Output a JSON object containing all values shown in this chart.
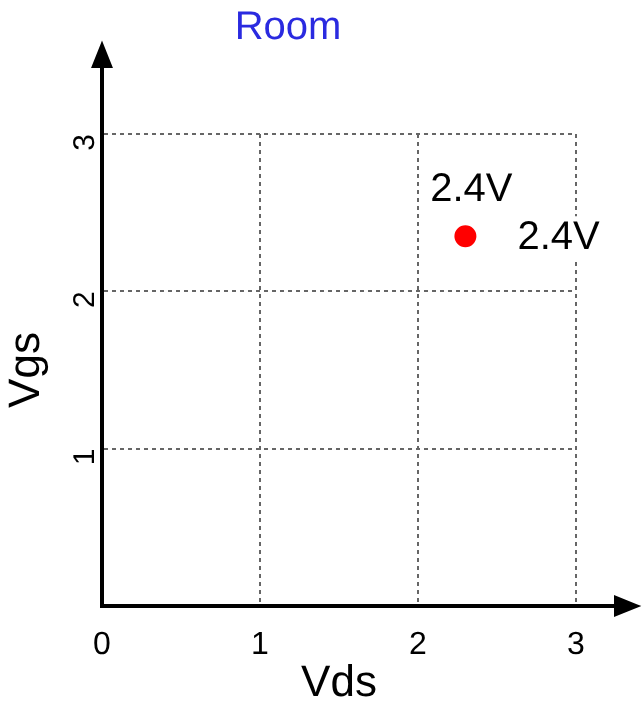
{
  "chart_data": {
    "type": "scatter",
    "title": "Room",
    "xlabel": "Vds",
    "ylabel": "Vgs",
    "x": [
      2.3
    ],
    "series": [
      {
        "color": "#ff0000",
        "values": [
          2.35
        ]
      }
    ],
    "xlim": [
      0,
      3
    ],
    "ylim": [
      0,
      3
    ],
    "xticks": [
      0,
      1,
      2,
      3
    ],
    "yticks": [
      1,
      2,
      3
    ],
    "grid": true,
    "marker": "circle",
    "legend": false,
    "annotations": [
      {
        "text": "2.4V",
        "x": 2.3,
        "y": 2.35
      },
      {
        "text": "2.4V",
        "x": 2.3,
        "y": 2.35
      }
    ]
  }
}
